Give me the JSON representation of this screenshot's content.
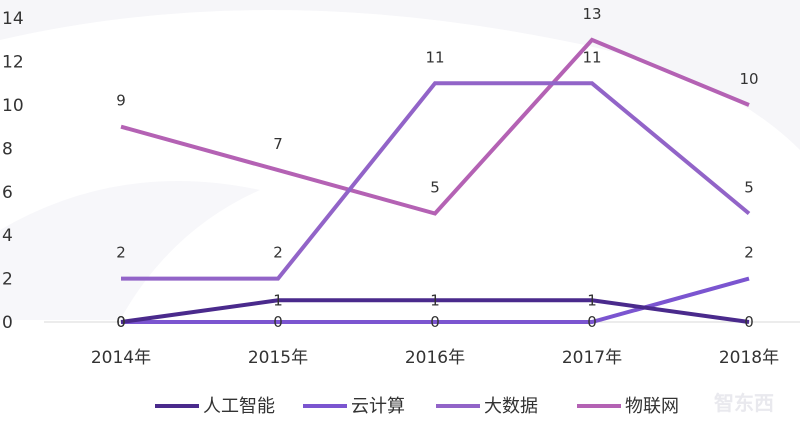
{
  "chart_data": {
    "type": "line",
    "categories": [
      "2014年",
      "2015年",
      "2016年",
      "2017年",
      "2018年"
    ],
    "ylim": [
      0,
      14
    ],
    "yticks": [
      0,
      2,
      4,
      6,
      8,
      10,
      12,
      14
    ],
    "grid": false,
    "legend_position": "bottom",
    "series": [
      {
        "name": "人工智能",
        "color": "#4a2a8c",
        "values": [
          0,
          1,
          1,
          1,
          0
        ]
      },
      {
        "name": "云计算",
        "color": "#7b55d0",
        "values": [
          0,
          0,
          0,
          0,
          2
        ]
      },
      {
        "name": "大数据",
        "color": "#9264c8",
        "values": [
          2,
          2,
          11,
          11,
          5
        ]
      },
      {
        "name": "物联网",
        "color": "#b462b4",
        "values": [
          9,
          7,
          5,
          13,
          10
        ]
      }
    ]
  },
  "watermark": {
    "text": "智东西"
  }
}
